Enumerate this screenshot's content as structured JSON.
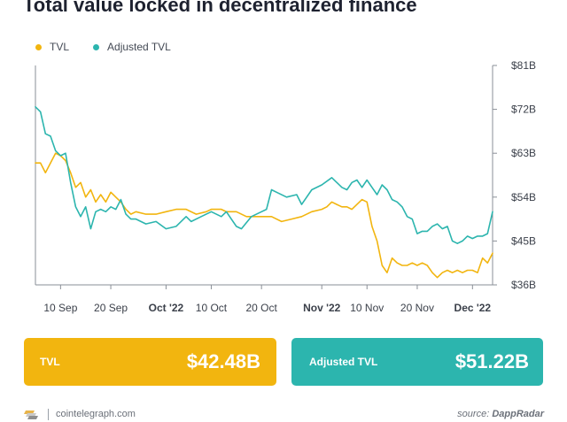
{
  "header": {
    "title": "Total value locked in decentralized finance"
  },
  "legend": [
    {
      "label": "TVL",
      "color": "#f2b50f"
    },
    {
      "label": "Adjusted TVL",
      "color": "#2cb5ae"
    }
  ],
  "cards": {
    "tvl": {
      "label": "TVL",
      "value": "$42.48B"
    },
    "adjusted": {
      "label": "Adjusted TVL",
      "value": "$51.22B"
    }
  },
  "footer": {
    "logo_icon": "cointelegraph-logo-icon",
    "site": "cointelegraph.com",
    "source_prefix": "source:",
    "source_name": "DappRadar"
  },
  "chart_data": {
    "type": "line",
    "title": "Total value locked in decentralized finance",
    "x_start": "2022-09-05",
    "x_end": "2022-12-05",
    "x_ticks": [
      {
        "date": "2022-09-10",
        "label": "10 Sep",
        "bold": false
      },
      {
        "date": "2022-09-20",
        "label": "20 Sep",
        "bold": false
      },
      {
        "date": "2022-10-01",
        "label": "Oct '22",
        "bold": true
      },
      {
        "date": "2022-10-10",
        "label": "10 Oct",
        "bold": false
      },
      {
        "date": "2022-10-20",
        "label": "20 Oct",
        "bold": false
      },
      {
        "date": "2022-11-01",
        "label": "Nov '22",
        "bold": true
      },
      {
        "date": "2022-11-10",
        "label": "10 Nov",
        "bold": false
      },
      {
        "date": "2022-11-20",
        "label": "20 Nov",
        "bold": false
      },
      {
        "date": "2022-12-01",
        "label": "Dec '22",
        "bold": true
      }
    ],
    "y_ticks": [
      {
        "value": 36,
        "label": "$36B"
      },
      {
        "value": 45,
        "label": "$45B"
      },
      {
        "value": 54,
        "label": "$54B"
      },
      {
        "value": 63,
        "label": "$63B"
      },
      {
        "value": 72,
        "label": "$72B"
      },
      {
        "value": 81,
        "label": "$81B"
      }
    ],
    "ylim": [
      36,
      81
    ],
    "y_axis_position": "right",
    "grid": false,
    "legend_position": "top-left",
    "series": [
      {
        "name": "TVL",
        "color": "#f2b50f",
        "points": [
          [
            "2022-09-05",
            61
          ],
          [
            "2022-09-06",
            61
          ],
          [
            "2022-09-07",
            59
          ],
          [
            "2022-09-08",
            61
          ],
          [
            "2022-09-09",
            63
          ],
          [
            "2022-09-10",
            62.5
          ],
          [
            "2022-09-11",
            61.5
          ],
          [
            "2022-09-12",
            59
          ],
          [
            "2022-09-13",
            56
          ],
          [
            "2022-09-14",
            57
          ],
          [
            "2022-09-15",
            54
          ],
          [
            "2022-09-16",
            55.5
          ],
          [
            "2022-09-17",
            53
          ],
          [
            "2022-09-18",
            54.5
          ],
          [
            "2022-09-19",
            53
          ],
          [
            "2022-09-20",
            55
          ],
          [
            "2022-09-21",
            54
          ],
          [
            "2022-09-22",
            53
          ],
          [
            "2022-09-23",
            51.5
          ],
          [
            "2022-09-24",
            50.5
          ],
          [
            "2022-09-25",
            51
          ],
          [
            "2022-09-27",
            50.5
          ],
          [
            "2022-09-29",
            50.5
          ],
          [
            "2022-10-01",
            51
          ],
          [
            "2022-10-03",
            51.5
          ],
          [
            "2022-10-05",
            51.5
          ],
          [
            "2022-10-07",
            50.5
          ],
          [
            "2022-10-09",
            51
          ],
          [
            "2022-10-10",
            51.5
          ],
          [
            "2022-10-12",
            51.5
          ],
          [
            "2022-10-13",
            51
          ],
          [
            "2022-10-15",
            51
          ],
          [
            "2022-10-17",
            50
          ],
          [
            "2022-10-19",
            50
          ],
          [
            "2022-10-21",
            50
          ],
          [
            "2022-10-22",
            50
          ],
          [
            "2022-10-24",
            49
          ],
          [
            "2022-10-26",
            49.5
          ],
          [
            "2022-10-28",
            50
          ],
          [
            "2022-10-30",
            51
          ],
          [
            "2022-11-01",
            51.5
          ],
          [
            "2022-11-02",
            52
          ],
          [
            "2022-11-03",
            53
          ],
          [
            "2022-11-04",
            52.5
          ],
          [
            "2022-11-05",
            52
          ],
          [
            "2022-11-06",
            52
          ],
          [
            "2022-11-07",
            51.5
          ],
          [
            "2022-11-08",
            52.5
          ],
          [
            "2022-11-09",
            53.5
          ],
          [
            "2022-11-10",
            53
          ],
          [
            "2022-11-11",
            48
          ],
          [
            "2022-11-12",
            45
          ],
          [
            "2022-11-13",
            40
          ],
          [
            "2022-11-14",
            38.5
          ],
          [
            "2022-11-15",
            41.5
          ],
          [
            "2022-11-16",
            40.5
          ],
          [
            "2022-11-17",
            40
          ],
          [
            "2022-11-18",
            40
          ],
          [
            "2022-11-19",
            40.5
          ],
          [
            "2022-11-20",
            40
          ],
          [
            "2022-11-21",
            40.5
          ],
          [
            "2022-11-22",
            40
          ],
          [
            "2022-11-23",
            38.5
          ],
          [
            "2022-11-24",
            37.5
          ],
          [
            "2022-11-25",
            38.5
          ],
          [
            "2022-11-26",
            39
          ],
          [
            "2022-11-27",
            38.5
          ],
          [
            "2022-11-28",
            39
          ],
          [
            "2022-11-29",
            38.5
          ],
          [
            "2022-11-30",
            39
          ],
          [
            "2022-12-01",
            39
          ],
          [
            "2022-12-02",
            38.5
          ],
          [
            "2022-12-03",
            41.5
          ],
          [
            "2022-12-04",
            40.5
          ],
          [
            "2022-12-05",
            42.5
          ]
        ]
      },
      {
        "name": "Adjusted TVL",
        "color": "#2cb5ae",
        "points": [
          [
            "2022-09-05",
            72.5
          ],
          [
            "2022-09-06",
            71.5
          ],
          [
            "2022-09-07",
            67
          ],
          [
            "2022-09-08",
            66.5
          ],
          [
            "2022-09-09",
            63.5
          ],
          [
            "2022-09-10",
            62.5
          ],
          [
            "2022-09-11",
            63
          ],
          [
            "2022-09-12",
            57
          ],
          [
            "2022-09-13",
            52
          ],
          [
            "2022-09-14",
            50
          ],
          [
            "2022-09-15",
            52
          ],
          [
            "2022-09-16",
            47.5
          ],
          [
            "2022-09-17",
            51
          ],
          [
            "2022-09-18",
            51.5
          ],
          [
            "2022-09-19",
            51
          ],
          [
            "2022-09-20",
            52
          ],
          [
            "2022-09-21",
            51.5
          ],
          [
            "2022-09-22",
            53.5
          ],
          [
            "2022-09-23",
            50.5
          ],
          [
            "2022-09-24",
            49.5
          ],
          [
            "2022-09-25",
            49.5
          ],
          [
            "2022-09-27",
            48.5
          ],
          [
            "2022-09-29",
            49
          ],
          [
            "2022-10-01",
            47.5
          ],
          [
            "2022-10-03",
            48
          ],
          [
            "2022-10-05",
            50
          ],
          [
            "2022-10-06",
            49
          ],
          [
            "2022-10-08",
            50
          ],
          [
            "2022-10-10",
            51
          ],
          [
            "2022-10-12",
            50
          ],
          [
            "2022-10-13",
            51
          ],
          [
            "2022-10-14",
            49.5
          ],
          [
            "2022-10-15",
            48
          ],
          [
            "2022-10-16",
            47.5
          ],
          [
            "2022-10-18",
            50
          ],
          [
            "2022-10-20",
            51
          ],
          [
            "2022-10-21",
            51.5
          ],
          [
            "2022-10-22",
            55.5
          ],
          [
            "2022-10-23",
            55
          ],
          [
            "2022-10-25",
            54
          ],
          [
            "2022-10-27",
            54.5
          ],
          [
            "2022-10-28",
            52.5
          ],
          [
            "2022-10-30",
            55.5
          ],
          [
            "2022-11-01",
            56.5
          ],
          [
            "2022-11-03",
            58
          ],
          [
            "2022-11-04",
            57
          ],
          [
            "2022-11-05",
            56
          ],
          [
            "2022-11-06",
            55.5
          ],
          [
            "2022-11-07",
            57
          ],
          [
            "2022-11-08",
            57.5
          ],
          [
            "2022-11-09",
            56
          ],
          [
            "2022-11-10",
            57.5
          ],
          [
            "2022-11-11",
            56
          ],
          [
            "2022-11-12",
            54.5
          ],
          [
            "2022-11-13",
            56.5
          ],
          [
            "2022-11-14",
            55.5
          ],
          [
            "2022-11-15",
            53.5
          ],
          [
            "2022-11-16",
            53
          ],
          [
            "2022-11-17",
            52
          ],
          [
            "2022-11-18",
            50
          ],
          [
            "2022-11-19",
            49.5
          ],
          [
            "2022-11-20",
            46.5
          ],
          [
            "2022-11-21",
            47
          ],
          [
            "2022-11-22",
            47
          ],
          [
            "2022-11-23",
            48
          ],
          [
            "2022-11-24",
            48.5
          ],
          [
            "2022-11-25",
            47.5
          ],
          [
            "2022-11-26",
            48
          ],
          [
            "2022-11-27",
            45
          ],
          [
            "2022-11-28",
            44.5
          ],
          [
            "2022-11-29",
            45
          ],
          [
            "2022-11-30",
            46
          ],
          [
            "2022-12-01",
            45.5
          ],
          [
            "2022-12-02",
            46
          ],
          [
            "2022-12-03",
            46
          ],
          [
            "2022-12-04",
            46.5
          ],
          [
            "2022-12-05",
            51
          ]
        ]
      }
    ]
  }
}
